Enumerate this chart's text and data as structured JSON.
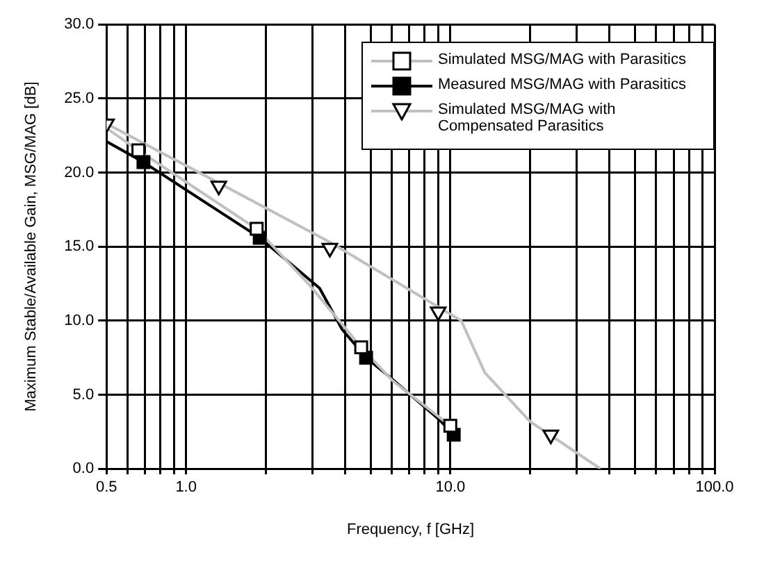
{
  "chart_data": {
    "type": "line",
    "xlabel": "Frequency, f [GHz]",
    "ylabel": "Maximum Stable/Available Gain, MSG/MAG [dB]",
    "log": "x",
    "xlim": [
      0.5,
      100
    ],
    "ylim": [
      0,
      30
    ],
    "grid": true,
    "legend": "top right",
    "xticks": [
      {
        "value": 0.5,
        "label": "0.5"
      },
      {
        "value": 0.6,
        "label": null
      },
      {
        "value": 0.7,
        "label": null
      },
      {
        "value": 0.8,
        "label": null
      },
      {
        "value": 0.9,
        "label": null
      },
      {
        "value": 1,
        "label": "1.0"
      },
      {
        "value": 2,
        "label": null
      },
      {
        "value": 3,
        "label": null
      },
      {
        "value": 4,
        "label": null
      },
      {
        "value": 5,
        "label": null
      },
      {
        "value": 6,
        "label": null
      },
      {
        "value": 7,
        "label": null
      },
      {
        "value": 8,
        "label": null
      },
      {
        "value": 9,
        "label": null
      },
      {
        "value": 10,
        "label": "10.0"
      },
      {
        "value": 20,
        "label": null
      },
      {
        "value": 30,
        "label": null
      },
      {
        "value": 40,
        "label": null
      },
      {
        "value": 50,
        "label": null
      },
      {
        "value": 60,
        "label": null
      },
      {
        "value": 70,
        "label": null
      },
      {
        "value": 80,
        "label": null
      },
      {
        "value": 90,
        "label": null
      },
      {
        "value": 100,
        "label": "100.0"
      }
    ],
    "yticks": [
      {
        "value": 0,
        "label": "0.0"
      },
      {
        "value": 5,
        "label": "5.0"
      },
      {
        "value": 10,
        "label": "10.0"
      },
      {
        "value": 15,
        "label": "15.0"
      },
      {
        "value": 20,
        "label": "20.0"
      },
      {
        "value": 25,
        "label": "25.0"
      },
      {
        "value": 30,
        "label": "30.0"
      }
    ],
    "series": [
      {
        "name": "Simulated MSG/MAG with Parasitics",
        "color": "#c0c0c0",
        "marker": "none",
        "x": [
          0.5,
          0.66,
          1.85,
          2.9,
          4.6,
          6,
          10
        ],
        "values": [
          23.0,
          21.5,
          16.2,
          12.5,
          8.2,
          6.0,
          2.9
        ]
      },
      {
        "type": "scatter",
        "color": "#ffffff",
        "marker": "square",
        "x": [
          0.66,
          1.85,
          4.6,
          10
        ],
        "values": [
          21.5,
          16.2,
          8.2,
          2.9
        ]
      },
      {
        "name": "Measured MSG/MAG with Parasitics",
        "color": "#000000",
        "marker": "none",
        "x": [
          0.5,
          0.69,
          1.9,
          3.2,
          3.9,
          4.8,
          5.9,
          9.1,
          10.3
        ],
        "values": [
          22.1,
          20.7,
          15.6,
          12.2,
          9.4,
          7.5,
          6.2,
          3.3,
          2.3
        ]
      },
      {
        "type": "scatter",
        "color": "#000000",
        "marker": "square",
        "x": [
          0.69,
          1.9,
          4.8,
          10.3
        ],
        "values": [
          20.7,
          15.6,
          7.5,
          2.3
        ]
      },
      {
        "name": "Simulated MSG/MAG with Compensated Parasitics",
        "color": "#c0c0c0",
        "marker": "none",
        "x": [
          0.5,
          1.33,
          3.5,
          11,
          13.5,
          20,
          37
        ],
        "values": [
          23.3,
          19.3,
          15.3,
          10.0,
          6.5,
          3.2,
          0
        ]
      },
      {
        "type": "scatter",
        "color": "#ffffff",
        "marker": "triangle",
        "x": [
          0.5,
          1.33,
          3.5,
          9.0,
          24
        ],
        "values": [
          23.3,
          19.1,
          14.9,
          10.6,
          2.3
        ]
      }
    ]
  }
}
